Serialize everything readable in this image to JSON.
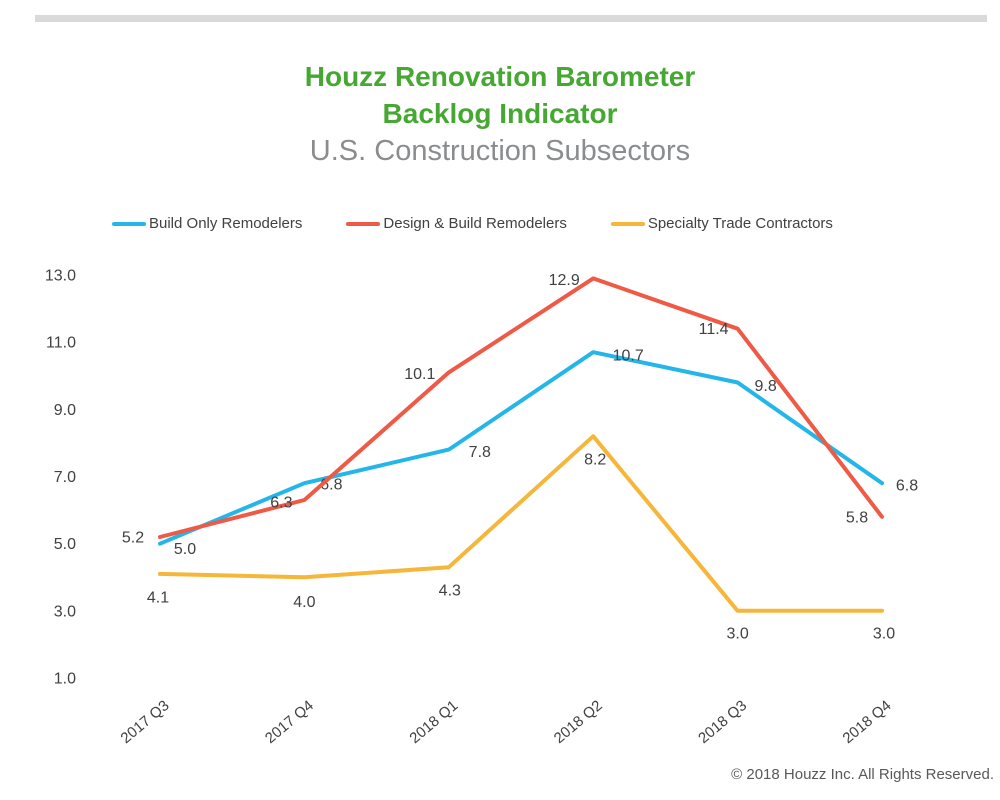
{
  "header": {
    "title_line1": "Houzz Renovation Barometer",
    "title_line2": "Backlog Indicator",
    "subtitle": "U.S. Construction Subsectors"
  },
  "footer": {
    "copyright": "© 2018 Houzz Inc. All Rights Reserved."
  },
  "colors": {
    "title_green": "#46a832",
    "subtitle_gray": "#8a8c8e",
    "top_bar_gray": "#d9d9d9",
    "label_text": "#414042",
    "footer_text": "#58595b"
  },
  "chart_data": {
    "type": "line",
    "title": "Houzz Renovation Barometer Backlog Indicator — U.S. Construction Subsectors",
    "xlabel": "",
    "ylabel": "",
    "categories": [
      "2017 Q3",
      "2017 Q4",
      "2018 Q1",
      "2018 Q2",
      "2018 Q3",
      "2018 Q4"
    ],
    "series": [
      {
        "name": "Build Only Remodelers",
        "color": "#25b6e9",
        "values": [
          5.0,
          6.8,
          7.8,
          10.7,
          9.8,
          6.8
        ],
        "label_offsets": [
          [
            25,
            5
          ],
          [
            27,
            1
          ],
          [
            31,
            2
          ],
          [
            35,
            3
          ],
          [
            28,
            3
          ],
          [
            25,
            2
          ]
        ]
      },
      {
        "name": "Design & Build Remodelers",
        "color": "#ee5a46",
        "values": [
          5.2,
          6.3,
          10.1,
          12.9,
          11.4,
          5.8
        ],
        "label_offsets": [
          [
            -27,
            0
          ],
          [
            -23,
            2
          ],
          [
            -29,
            1
          ],
          [
            -29,
            1
          ],
          [
            -24,
            0
          ],
          [
            -25,
            0
          ]
        ]
      },
      {
        "name": "Specialty Trade Contractors",
        "color": "#f6b63a",
        "values": [
          4.1,
          4.0,
          4.3,
          8.2,
          3.0,
          3.0
        ],
        "label_offsets": [
          [
            -2,
            23
          ],
          [
            0,
            24
          ],
          [
            1,
            23
          ],
          [
            2,
            23
          ],
          [
            0,
            22
          ],
          [
            2,
            22
          ]
        ]
      }
    ],
    "y_ticks": [
      13.0,
      11.0,
      9.0,
      7.0,
      5.0,
      3.0,
      1.0
    ],
    "ylim": [
      1.0,
      13.0
    ],
    "grid": false,
    "axis_lines": false,
    "legend_position": "top",
    "data_labels": true
  }
}
